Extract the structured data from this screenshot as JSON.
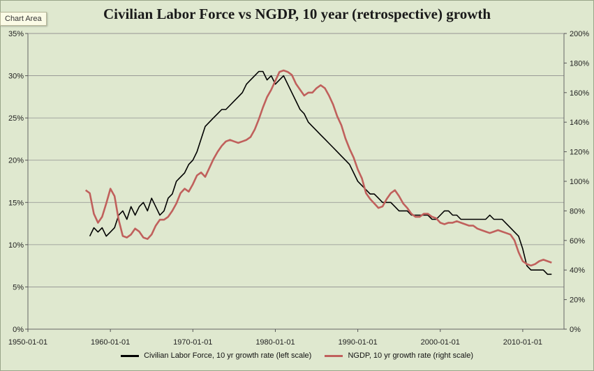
{
  "tooltip": "Chart Area",
  "chart_data": {
    "type": "line",
    "title": "Civilian Labor Force vs NGDP, 10 year (retrospective) growth",
    "xlabel": "",
    "ylabel": "",
    "x_ticks": [
      "1950-01-01",
      "1960-01-01",
      "1970-01-01",
      "1980-01-01",
      "1990-01-01",
      "2000-01-01",
      "2010-01-01"
    ],
    "xlim": [
      1950,
      2015
    ],
    "y_left_ticks": [
      "0%",
      "5%",
      "10%",
      "15%",
      "20%",
      "25%",
      "30%",
      "35%"
    ],
    "y_left_lim": [
      0,
      35
    ],
    "y_right_ticks": [
      "0%",
      "20%",
      "40%",
      "60%",
      "80%",
      "100%",
      "120%",
      "140%",
      "160%",
      "180%",
      "200%"
    ],
    "y_right_lim": [
      0,
      200
    ],
    "grid": "horizontal",
    "legend": "bottom",
    "series": [
      {
        "name": "Civilian Labor Force, 10 yr growth rate (left scale)",
        "color": "#000000",
        "axis": "left",
        "x": [
          1957.5,
          1958.0,
          1958.5,
          1959.0,
          1959.5,
          1960.0,
          1960.5,
          1961.0,
          1961.5,
          1962.0,
          1962.5,
          1963.0,
          1963.5,
          1964.0,
          1964.5,
          1965.0,
          1965.5,
          1966.0,
          1966.5,
          1967.0,
          1967.5,
          1968.0,
          1968.5,
          1969.0,
          1969.5,
          1970.0,
          1970.5,
          1971.0,
          1971.5,
          1972.0,
          1972.5,
          1973.0,
          1973.5,
          1974.0,
          1974.5,
          1975.0,
          1975.5,
          1976.0,
          1976.5,
          1977.0,
          1977.5,
          1978.0,
          1978.5,
          1979.0,
          1979.5,
          1980.0,
          1980.5,
          1981.0,
          1981.5,
          1982.0,
          1982.5,
          1983.0,
          1983.5,
          1984.0,
          1984.5,
          1985.0,
          1985.5,
          1986.0,
          1986.5,
          1987.0,
          1987.5,
          1988.0,
          1988.5,
          1989.0,
          1989.5,
          1990.0,
          1990.5,
          1991.0,
          1991.5,
          1992.0,
          1992.5,
          1993.0,
          1993.5,
          1994.0,
          1994.5,
          1995.0,
          1995.5,
          1996.0,
          1996.5,
          1997.0,
          1997.5,
          1998.0,
          1998.5,
          1999.0,
          1999.5,
          2000.0,
          2000.5,
          2001.0,
          2001.5,
          2002.0,
          2002.5,
          2003.0,
          2003.5,
          2004.0,
          2004.5,
          2005.0,
          2005.5,
          2006.0,
          2006.5,
          2007.0,
          2007.5,
          2008.0,
          2008.5,
          2009.0,
          2009.5,
          2010.0,
          2010.5,
          2011.0,
          2011.5,
          2012.0,
          2012.5,
          2013.0,
          2013.5
        ],
        "values": [
          11.0,
          12.0,
          11.5,
          12.0,
          11.0,
          11.5,
          12.0,
          13.5,
          14.0,
          13.0,
          14.5,
          13.5,
          14.5,
          15.0,
          14.0,
          15.5,
          14.5,
          13.5,
          14.0,
          15.5,
          16.0,
          17.5,
          18.0,
          18.5,
          19.5,
          20.0,
          21.0,
          22.5,
          24.0,
          24.5,
          25.0,
          25.5,
          26.0,
          26.0,
          26.5,
          27.0,
          27.5,
          28.0,
          29.0,
          29.5,
          30.0,
          30.5,
          30.5,
          29.5,
          30.0,
          29.0,
          29.5,
          30.0,
          29.0,
          28.0,
          27.0,
          26.0,
          25.5,
          24.5,
          24.0,
          23.5,
          23.0,
          22.5,
          22.0,
          21.5,
          21.0,
          20.5,
          20.0,
          19.5,
          18.5,
          17.5,
          17.0,
          16.5,
          16.0,
          16.0,
          15.5,
          15.0,
          15.0,
          15.0,
          14.5,
          14.0,
          14.0,
          14.0,
          13.5,
          13.5,
          13.5,
          13.5,
          13.5,
          13.0,
          13.0,
          13.5,
          14.0,
          14.0,
          13.5,
          13.5,
          13.0,
          13.0,
          13.0,
          13.0,
          13.0,
          13.0,
          13.0,
          13.5,
          13.0,
          13.0,
          13.0,
          12.5,
          12.0,
          11.5,
          11.0,
          9.5,
          7.5,
          7.0,
          7.0,
          7.0,
          7.0,
          6.5,
          6.5
        ]
      },
      {
        "name": "NGDP, 10 yr growth rate (right scale)",
        "color": "#c0605c",
        "axis": "right",
        "x": [
          1957.0,
          1957.5,
          1958.0,
          1958.5,
          1959.0,
          1959.5,
          1960.0,
          1960.5,
          1961.0,
          1961.5,
          1962.0,
          1962.5,
          1963.0,
          1963.5,
          1964.0,
          1964.5,
          1965.0,
          1965.5,
          1966.0,
          1966.5,
          1967.0,
          1967.5,
          1968.0,
          1968.5,
          1969.0,
          1969.5,
          1970.0,
          1970.5,
          1971.0,
          1971.5,
          1972.0,
          1972.5,
          1973.0,
          1973.5,
          1974.0,
          1974.5,
          1975.0,
          1975.5,
          1976.0,
          1976.5,
          1977.0,
          1977.5,
          1978.0,
          1978.5,
          1979.0,
          1979.5,
          1980.0,
          1980.5,
          1981.0,
          1981.5,
          1982.0,
          1982.5,
          1983.0,
          1983.5,
          1984.0,
          1984.5,
          1985.0,
          1985.5,
          1986.0,
          1986.5,
          1987.0,
          1987.5,
          1988.0,
          1988.5,
          1989.0,
          1989.5,
          1990.0,
          1990.5,
          1991.0,
          1991.5,
          1992.0,
          1992.5,
          1993.0,
          1993.5,
          1994.0,
          1994.5,
          1995.0,
          1995.5,
          1996.0,
          1996.5,
          1997.0,
          1997.5,
          1998.0,
          1998.5,
          1999.0,
          1999.5,
          2000.0,
          2000.5,
          2001.0,
          2001.5,
          2002.0,
          2002.5,
          2003.0,
          2003.5,
          2004.0,
          2004.5,
          2005.0,
          2005.5,
          2006.0,
          2006.5,
          2007.0,
          2007.5,
          2008.0,
          2008.5,
          2009.0,
          2009.5,
          2010.0,
          2010.5,
          2011.0,
          2011.5,
          2012.0,
          2012.5,
          2013.0,
          2013.5
        ],
        "values": [
          94,
          92,
          78,
          72,
          76,
          85,
          95,
          90,
          74,
          63,
          62,
          64,
          68,
          66,
          62,
          61,
          64,
          70,
          74,
          74,
          76,
          80,
          85,
          92,
          95,
          93,
          98,
          104,
          106,
          103,
          109,
          115,
          120,
          124,
          127,
          128,
          127,
          126,
          127,
          128,
          130,
          135,
          142,
          150,
          157,
          162,
          168,
          174,
          175,
          174,
          172,
          166,
          162,
          158,
          160,
          160,
          163,
          165,
          163,
          158,
          152,
          144,
          138,
          129,
          122,
          116,
          108,
          102,
          92,
          88,
          85,
          82,
          83,
          88,
          92,
          94,
          90,
          85,
          82,
          78,
          76,
          76,
          78,
          78,
          76,
          75,
          72,
          71,
          72,
          72,
          73,
          72,
          71,
          70,
          70,
          68,
          67,
          66,
          65,
          66,
          67,
          66,
          65,
          64,
          60,
          52,
          46,
          44,
          43,
          44,
          46,
          47,
          46,
          45
        ]
      }
    ]
  },
  "legend": {
    "items": [
      {
        "label": "Civilian Labor Force, 10 yr growth rate (left scale)",
        "color": "#000000"
      },
      {
        "label": "NGDP, 10 yr growth rate (right scale)",
        "color": "#c0605c"
      }
    ]
  }
}
